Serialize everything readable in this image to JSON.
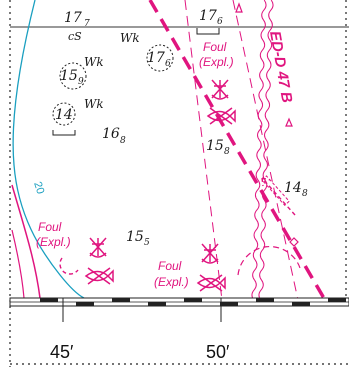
{
  "colors": {
    "magenta": "#e0157f",
    "cyan": "#1a9fc0",
    "ink": "#1a1a1a"
  },
  "soundings": [
    {
      "id": "s177a",
      "main": "17",
      "sub": "7"
    },
    {
      "id": "s176a",
      "main": "17",
      "sub": "6"
    },
    {
      "id": "s176b",
      "main": "17",
      "sub": "6"
    },
    {
      "id": "s159",
      "main": "15",
      "sub": "9"
    },
    {
      "id": "s14",
      "main": "14",
      "sub": ""
    },
    {
      "id": "s168",
      "main": "16",
      "sub": "8"
    },
    {
      "id": "s158",
      "main": "15",
      "sub": "8"
    },
    {
      "id": "s148",
      "main": "14",
      "sub": "8"
    },
    {
      "id": "s155",
      "main": "15",
      "sub": "5"
    }
  ],
  "labels": {
    "seabed": "cS",
    "wreck1": "Wk",
    "wreck2": "Wk",
    "wreck3": "Wk",
    "depth_contour": "20",
    "cable": "ED-D 47 B"
  },
  "foul_areas": [
    {
      "id": "foul1",
      "line1": "Foul",
      "line2": "(Expl.)"
    },
    {
      "id": "foul2",
      "line1": "Foul",
      "line2": "(Expl.)"
    },
    {
      "id": "foul3",
      "line1": "Foul",
      "line2": "(Expl.)"
    }
  ],
  "longitude_labels": [
    "45′",
    "50′"
  ]
}
